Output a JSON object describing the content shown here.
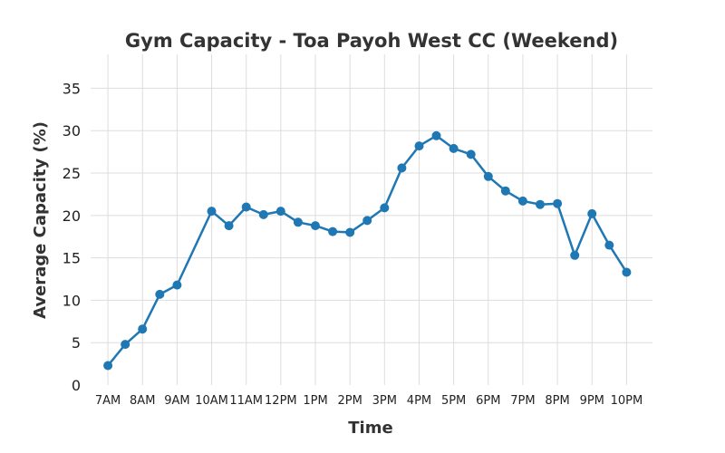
{
  "chart_data": {
    "type": "line",
    "title": "Gym Capacity - Toa Payoh West CC (Weekend)",
    "xlabel": "Time",
    "ylabel": "Average Capacity (%)",
    "x": [
      "7AM",
      "7:30AM",
      "8AM",
      "8:30AM",
      "9AM",
      "10AM",
      "10:30AM",
      "11AM",
      "11:30AM",
      "12PM",
      "12:30PM",
      "1PM",
      "1:30PM",
      "2PM",
      "2:30PM",
      "3PM",
      "3:30PM",
      "4PM",
      "4:30PM",
      "5PM",
      "5:30PM",
      "6PM",
      "6:30PM",
      "7PM",
      "7:30PM",
      "8PM",
      "8:30PM",
      "9PM",
      "9:30PM",
      "10PM"
    ],
    "x_hours": [
      7,
      7.5,
      8,
      8.5,
      9,
      10,
      10.5,
      11,
      11.5,
      12,
      12.5,
      13,
      13.5,
      14,
      14.5,
      15,
      15.5,
      16,
      16.5,
      17,
      17.5,
      18,
      18.5,
      19,
      19.5,
      20,
      20.5,
      21,
      21.5,
      22
    ],
    "values": [
      2.3,
      4.8,
      6.6,
      10.7,
      11.8,
      20.5,
      18.8,
      21.0,
      20.1,
      20.5,
      19.2,
      18.8,
      18.1,
      18.0,
      19.4,
      20.9,
      25.6,
      28.2,
      29.4,
      27.9,
      27.2,
      24.6,
      22.9,
      21.7,
      21.3,
      21.4,
      15.3,
      20.2,
      16.5,
      13.3
    ],
    "xticks": [
      {
        "hour": 7,
        "label": "7AM"
      },
      {
        "hour": 8,
        "label": "8AM"
      },
      {
        "hour": 9,
        "label": "9AM"
      },
      {
        "hour": 10,
        "label": "10AM"
      },
      {
        "hour": 11,
        "label": "11AM"
      },
      {
        "hour": 12,
        "label": "12PM"
      },
      {
        "hour": 13,
        "label": "1PM"
      },
      {
        "hour": 14,
        "label": "2PM"
      },
      {
        "hour": 15,
        "label": "3PM"
      },
      {
        "hour": 16,
        "label": "4PM"
      },
      {
        "hour": 17,
        "label": "5PM"
      },
      {
        "hour": 18,
        "label": "6PM"
      },
      {
        "hour": 19,
        "label": "7PM"
      },
      {
        "hour": 20,
        "label": "8PM"
      },
      {
        "hour": 21,
        "label": "9PM"
      },
      {
        "hour": 22,
        "label": "10PM"
      }
    ],
    "yticks": [
      0,
      5,
      10,
      15,
      20,
      25,
      30,
      35
    ],
    "xlim": [
      6.5,
      22.75
    ],
    "ylim": [
      0,
      39
    ],
    "grid": true,
    "color": "#1f77b4"
  }
}
